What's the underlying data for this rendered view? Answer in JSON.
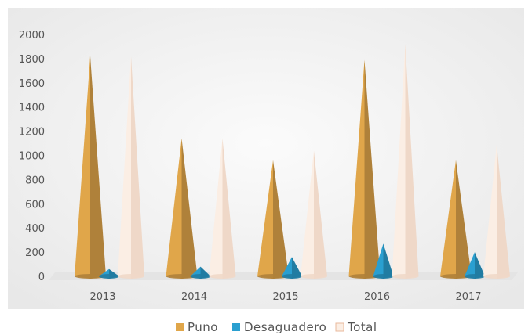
{
  "chart_data": {
    "type": "bar",
    "bar_shape": "cone",
    "categories": [
      "2013",
      "2014",
      "2015",
      "2016",
      "2017"
    ],
    "series": [
      {
        "name": "Puno",
        "values": [
          1820,
          1140,
          960,
          1790,
          960
        ],
        "color": "#e0a64a"
      },
      {
        "name": "Desaguadero",
        "values": [
          60,
          80,
          160,
          270,
          200
        ],
        "color": "#2a9fd0"
      },
      {
        "name": "Total",
        "values": [
          1820,
          1140,
          1040,
          1920,
          1090
        ],
        "color": "#fbeee4"
      }
    ],
    "y_ticks": [
      "0",
      "200",
      "400",
      "600",
      "800",
      "1000",
      "1200",
      "1400",
      "1600",
      "1800",
      "2000"
    ],
    "ylim": [
      0,
      2000
    ],
    "legend_position": "bottom",
    "background": "#f3f3f3"
  }
}
